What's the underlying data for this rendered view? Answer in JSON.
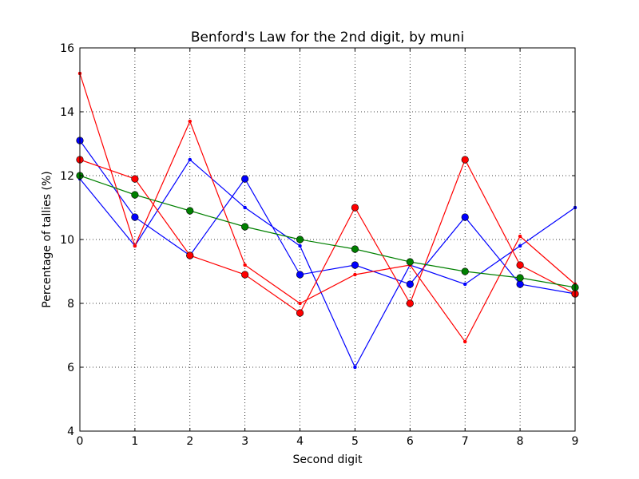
{
  "chart_data": {
    "type": "line",
    "title": "Benford's Law for the 2nd digit, by muni",
    "xlabel": "Second digit",
    "ylabel": "Percentage of tallies (%)",
    "xlim": [
      0,
      9
    ],
    "ylim": [
      4,
      16
    ],
    "x_ticks": [
      "0",
      "1",
      "2",
      "3",
      "4",
      "5",
      "6",
      "7",
      "8",
      "9"
    ],
    "y_ticks": [
      "4",
      "6",
      "8",
      "10",
      "12",
      "14",
      "16"
    ],
    "grid": true,
    "x": [
      0,
      1,
      2,
      3,
      4,
      5,
      6,
      7,
      8,
      9
    ],
    "series": [
      {
        "color": "#0000ff",
        "marker": "circle",
        "values": [
          13.1,
          10.7,
          9.5,
          11.9,
          8.9,
          9.2,
          8.6,
          10.7,
          8.6,
          8.3
        ]
      },
      {
        "color": "#0000ff",
        "marker": "dot",
        "values": [
          11.9,
          9.8,
          12.5,
          11.0,
          9.8,
          6.0,
          9.2,
          8.6,
          9.8,
          11.0
        ]
      },
      {
        "color": "#ff0000",
        "marker": "circle",
        "values": [
          12.5,
          11.9,
          9.5,
          8.9,
          7.7,
          11.0,
          8.0,
          12.5,
          9.2,
          8.3
        ]
      },
      {
        "color": "#ff0000",
        "marker": "dot",
        "values": [
          15.2,
          9.8,
          13.7,
          9.2,
          8.0,
          8.9,
          9.2,
          6.8,
          10.1,
          8.6
        ]
      },
      {
        "color": "#008000",
        "marker": "circle",
        "values": [
          12.0,
          11.4,
          10.9,
          10.4,
          10.0,
          9.7,
          9.3,
          9.0,
          8.8,
          8.5
        ]
      }
    ]
  }
}
